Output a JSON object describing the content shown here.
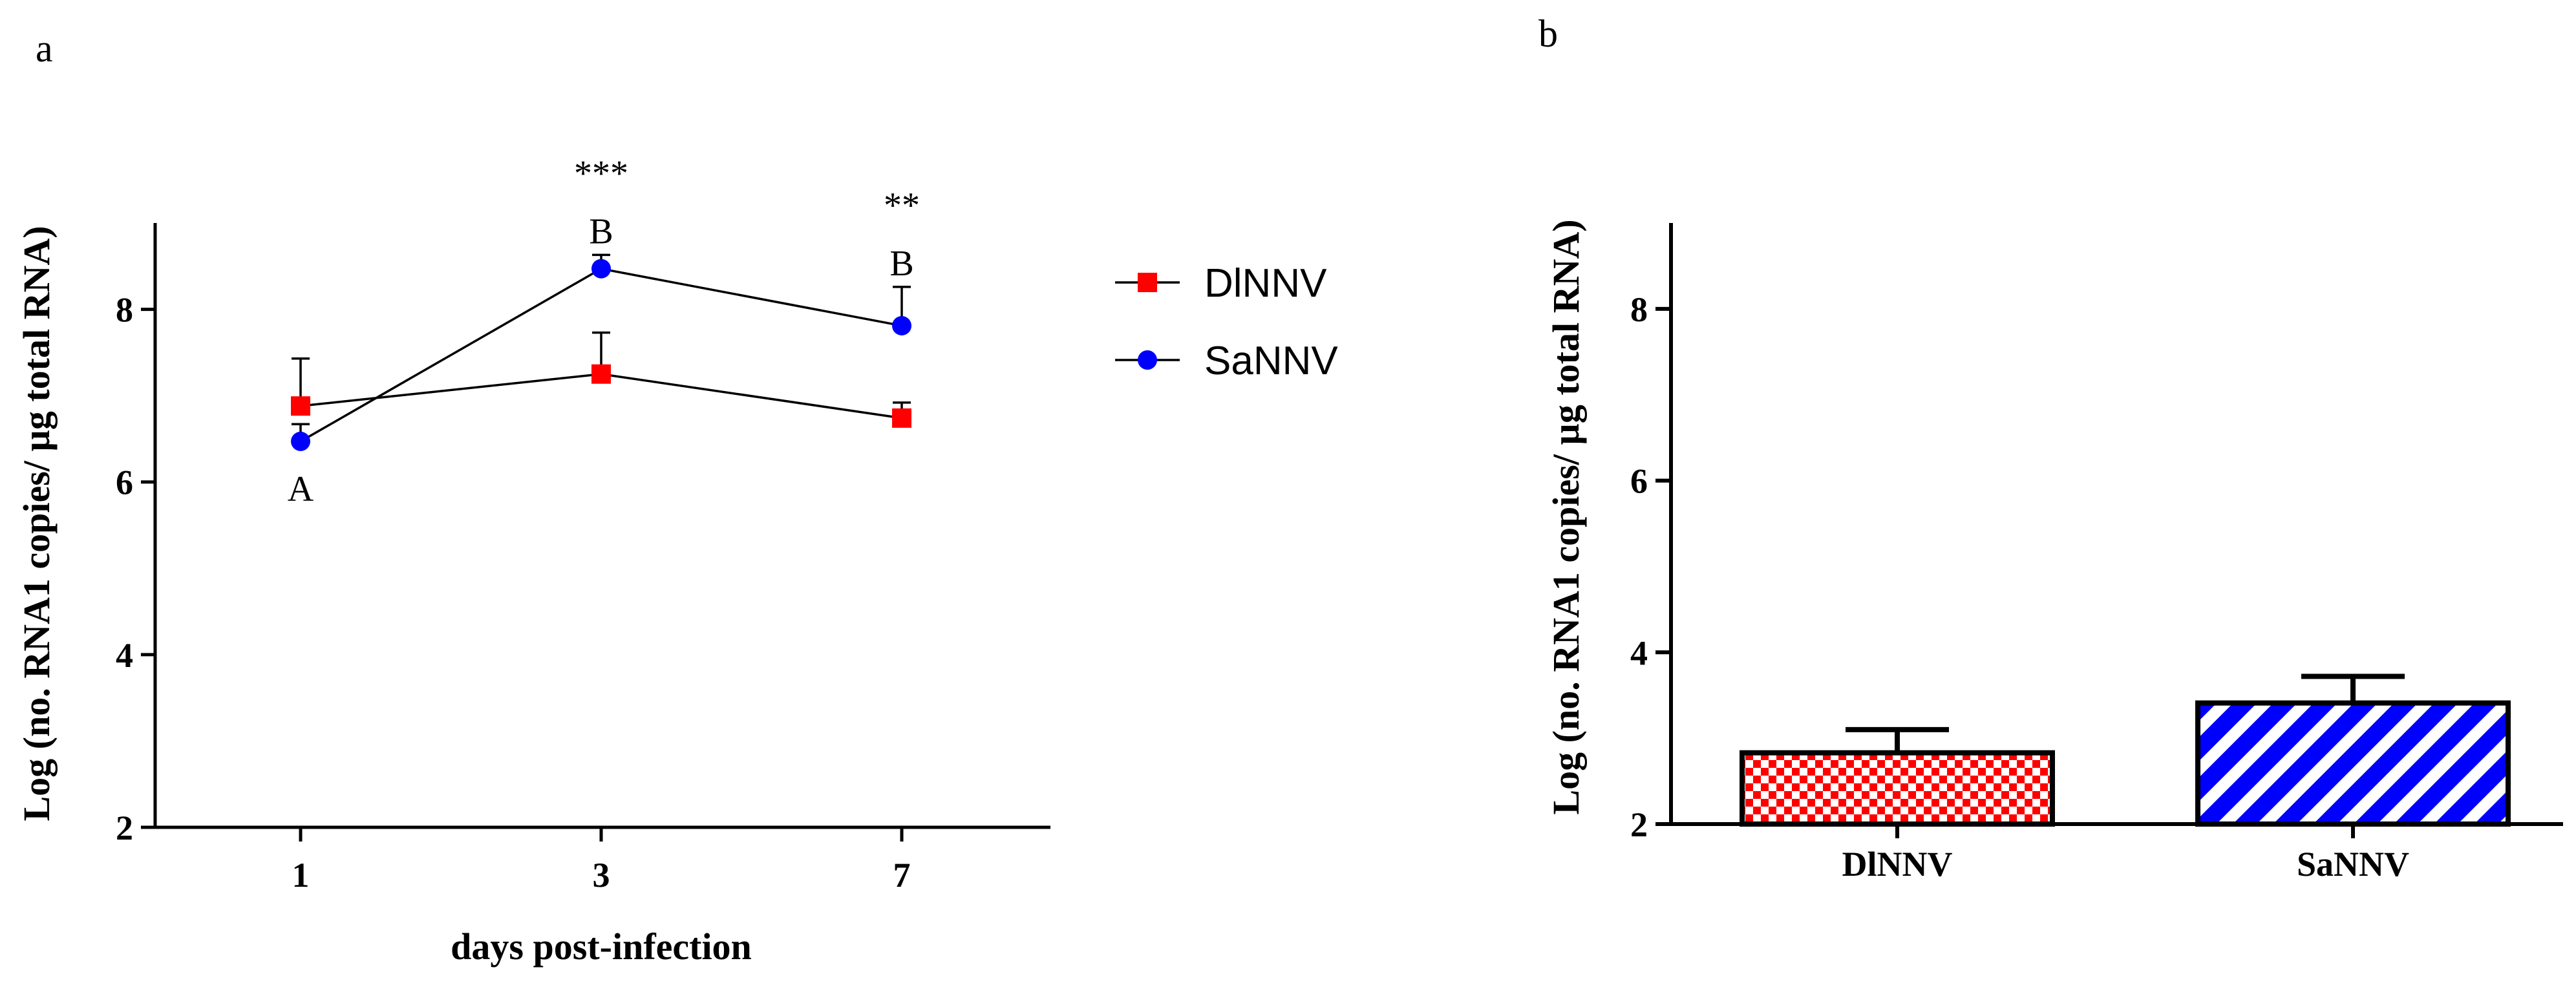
{
  "chart_data": [
    {
      "panel": "a",
      "type": "line",
      "title": "",
      "xlabel": "days post-infection",
      "ylabel": "Log (no. RNA1 copies/ µg total RNA)",
      "categories": [
        "1",
        "3",
        "7"
      ],
      "ylim": [
        2,
        9
      ],
      "yticks": [
        "2",
        "4",
        "6",
        "8"
      ],
      "series": [
        {
          "name": "DlNNV",
          "color": "#ff0000",
          "marker": "square",
          "values": [
            6.88,
            7.25,
            6.74
          ],
          "errors": [
            0.55,
            0.48,
            0.18
          ]
        },
        {
          "name": "SaNNV",
          "color": "#0000ff",
          "marker": "circle",
          "values": [
            6.47,
            8.47,
            7.81
          ],
          "errors": [
            0.2,
            0.16,
            0.45
          ]
        }
      ],
      "annotations": [
        {
          "category": "1",
          "series": "SaNNV",
          "position": "below",
          "text": "A"
        },
        {
          "category": "3",
          "series": "SaNNV",
          "position": "above",
          "text": "B"
        },
        {
          "category": "3",
          "series": "SaNNV",
          "position": "above-star",
          "text": "***"
        },
        {
          "category": "7",
          "series": "SaNNV",
          "position": "above",
          "text": "B"
        },
        {
          "category": "7",
          "series": "SaNNV",
          "position": "above-star",
          "text": "**"
        }
      ],
      "legend": "right"
    },
    {
      "panel": "b",
      "type": "bar",
      "title": "",
      "xlabel": "",
      "ylabel": "Log (no. RNA1 copies/ µg total RNA)",
      "categories": [
        "DlNNV",
        "SaNNV"
      ],
      "values": [
        2.83,
        3.41
      ],
      "errors": [
        0.27,
        0.31
      ],
      "patterns": [
        "red-checker",
        "blue-diagonal"
      ],
      "colors": [
        "#ff0000",
        "#0000ff"
      ],
      "ylim": [
        2,
        9
      ],
      "yticks": [
        "2",
        "4",
        "6",
        "8"
      ]
    }
  ]
}
